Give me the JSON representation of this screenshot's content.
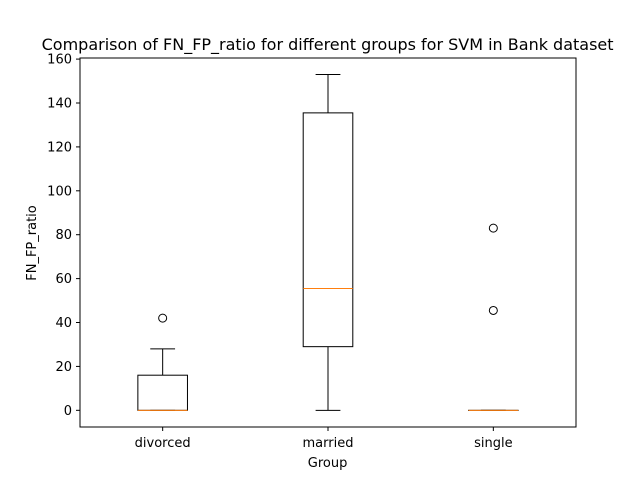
{
  "chart_data": {
    "type": "boxplot",
    "title": "Comparison of FN_FP_ratio for different groups for SVM in Bank dataset",
    "xlabel": "Group",
    "ylabel": "FN_FP_ratio",
    "ylim": [
      -7.6,
      160.5
    ],
    "yticks": [
      0,
      20,
      40,
      60,
      80,
      100,
      120,
      140,
      160
    ],
    "grid": false,
    "colors": {
      "box": "#000000",
      "median": "#ff7f0e",
      "flier": "#000000"
    },
    "categories": [
      "divorced",
      "married",
      "single"
    ],
    "boxes": [
      {
        "name": "divorced",
        "whisker_low": 0,
        "q1": 0,
        "median": 0,
        "q3": 16,
        "whisker_high": 28,
        "fliers": [
          42
        ]
      },
      {
        "name": "married",
        "whisker_low": 0,
        "q1": 29,
        "median": 55.5,
        "q3": 135.5,
        "whisker_high": 153,
        "fliers": []
      },
      {
        "name": "single",
        "whisker_low": 0,
        "q1": 0,
        "median": 0,
        "q3": 0,
        "whisker_high": 0,
        "fliers": [
          45.5,
          83
        ]
      }
    ]
  }
}
